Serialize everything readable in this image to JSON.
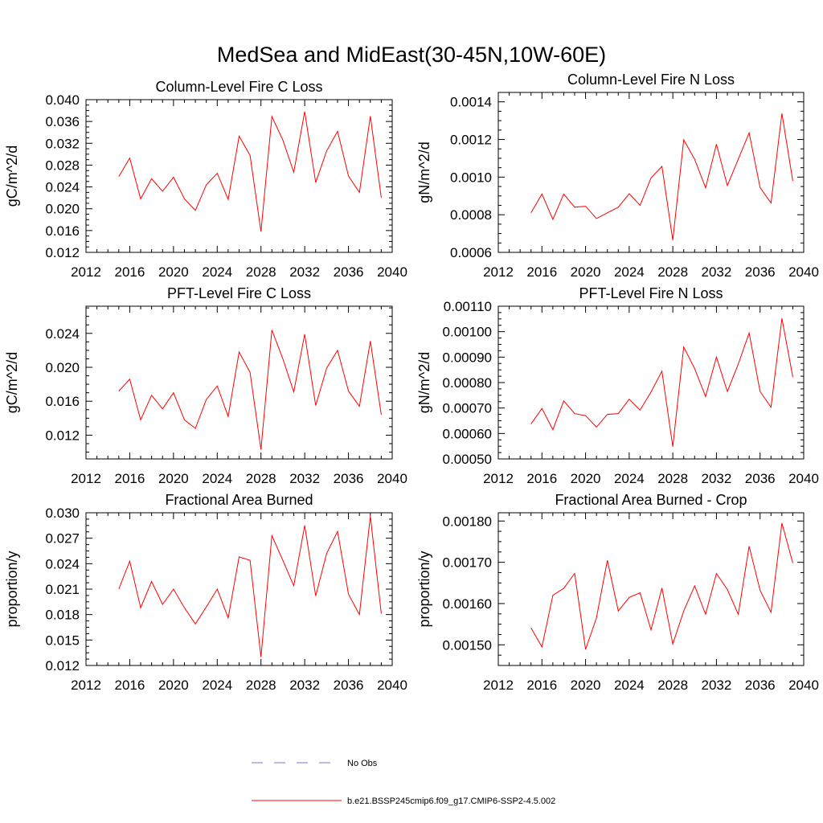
{
  "main_title": "MedSea and MidEast(30-45N,10W-60E)",
  "colors": {
    "model_line": "#ff0000",
    "obs_line": "#7777cc",
    "axis": "#000000"
  },
  "legend": {
    "obs_label": "No Obs",
    "model_label": "b.e21.BSSP245cmip6.f09_g17.CMIP6-SSP2-4.5.002"
  },
  "chart_data": [
    {
      "type": "line",
      "title": "Column-Level Fire C Loss",
      "ylabel": "gC/m^2/d",
      "xlim": [
        2012,
        2040
      ],
      "ylim": [
        0.012,
        0.04
      ],
      "x_ticks": [
        2012,
        2016,
        2020,
        2024,
        2028,
        2032,
        2036,
        2040
      ],
      "x_tick_labels": [
        "2012",
        "2016",
        "2020",
        "2024",
        "2028",
        "2032",
        "2036",
        "2040"
      ],
      "y_ticks": [
        0.012,
        0.016,
        0.02,
        0.024,
        0.028,
        0.032,
        0.036,
        0.04
      ],
      "y_tick_labels": [
        "0.012",
        "0.016",
        "0.020",
        "0.024",
        "0.028",
        "0.032",
        "0.036",
        "0.040"
      ],
      "x": [
        2015,
        2016,
        2017,
        2018,
        2019,
        2020,
        2021,
        2022,
        2023,
        2024,
        2025,
        2026,
        2027,
        2028,
        2029,
        2030,
        2031,
        2032,
        2033,
        2034,
        2035,
        2036,
        2037,
        2038,
        2039
      ],
      "y": [
        0.0259,
        0.0293,
        0.0218,
        0.0255,
        0.0232,
        0.0258,
        0.0218,
        0.0197,
        0.0244,
        0.0265,
        0.0217,
        0.0333,
        0.0298,
        0.0158,
        0.0369,
        0.0326,
        0.0267,
        0.0378,
        0.0248,
        0.0306,
        0.0342,
        0.026,
        0.023,
        0.037,
        0.022
      ]
    },
    {
      "type": "line",
      "title": "Column-Level Fire N Loss",
      "ylabel": "gN/m^2/d",
      "xlim": [
        2012,
        2040
      ],
      "ylim": [
        0.0006,
        0.00145
      ],
      "x_ticks": [
        2012,
        2016,
        2020,
        2024,
        2028,
        2032,
        2036,
        2040
      ],
      "x_tick_labels": [
        "2012",
        "2016",
        "2020",
        "2024",
        "2028",
        "2032",
        "2036",
        "2040"
      ],
      "y_ticks": [
        0.0006,
        0.0008,
        0.001,
        0.0012,
        0.0014
      ],
      "y_tick_labels": [
        "0.0006",
        "0.0008",
        "0.0010",
        "0.0012",
        "0.0014"
      ],
      "x": [
        2015,
        2016,
        2017,
        2018,
        2019,
        2020,
        2021,
        2022,
        2023,
        2024,
        2025,
        2026,
        2027,
        2028,
        2029,
        2030,
        2031,
        2032,
        2033,
        2034,
        2035,
        2036,
        2037,
        2038,
        2039
      ],
      "y": [
        0.00081,
        0.00091,
        0.000775,
        0.00091,
        0.00084,
        0.000845,
        0.00078,
        0.00081,
        0.00084,
        0.000912,
        0.00085,
        0.000995,
        0.001057,
        0.000665,
        0.001198,
        0.001095,
        0.000943,
        0.001175,
        0.000955,
        0.001095,
        0.001235,
        0.000945,
        0.000862,
        0.001338,
        0.00098
      ]
    },
    {
      "type": "line",
      "title": "PFT-Level Fire C Loss",
      "ylabel": "gC/m^2/d",
      "xlim": [
        2012,
        2040
      ],
      "ylim": [
        0.0092,
        0.0272
      ],
      "x_ticks": [
        2012,
        2016,
        2020,
        2024,
        2028,
        2032,
        2036,
        2040
      ],
      "x_tick_labels": [
        "2012",
        "2016",
        "2020",
        "2024",
        "2028",
        "2032",
        "2036",
        "2040"
      ],
      "y_ticks": [
        0.012,
        0.016,
        0.02,
        0.024
      ],
      "y_tick_labels": [
        "0.012",
        "0.016",
        "0.020",
        "0.024"
      ],
      "x": [
        2015,
        2016,
        2017,
        2018,
        2019,
        2020,
        2021,
        2022,
        2023,
        2024,
        2025,
        2026,
        2027,
        2028,
        2029,
        2030,
        2031,
        2032,
        2033,
        2034,
        2035,
        2036,
        2037,
        2038,
        2039
      ],
      "y": [
        0.0172,
        0.0186,
        0.0138,
        0.0167,
        0.0151,
        0.017,
        0.0138,
        0.0128,
        0.0162,
        0.0178,
        0.0142,
        0.0218,
        0.0194,
        0.0103,
        0.0244,
        0.021,
        0.0171,
        0.0239,
        0.0155,
        0.0199,
        0.022,
        0.0172,
        0.0154,
        0.0231,
        0.0144
      ]
    },
    {
      "type": "line",
      "title": "PFT-Level Fire N Loss",
      "ylabel": "gN/m^2/d",
      "xlim": [
        2012,
        2040
      ],
      "ylim": [
        0.0005,
        0.0011
      ],
      "x_ticks": [
        2012,
        2016,
        2020,
        2024,
        2028,
        2032,
        2036,
        2040
      ],
      "x_tick_labels": [
        "2012",
        "2016",
        "2020",
        "2024",
        "2028",
        "2032",
        "2036",
        "2040"
      ],
      "y_ticks": [
        0.0005,
        0.0006,
        0.0007,
        0.0008,
        0.0009,
        0.001,
        0.0011
      ],
      "y_tick_labels": [
        "0.00050",
        "0.00060",
        "0.00070",
        "0.00080",
        "0.00090",
        "0.00100",
        "0.00110"
      ],
      "x": [
        2015,
        2016,
        2017,
        2018,
        2019,
        2020,
        2021,
        2022,
        2023,
        2024,
        2025,
        2026,
        2027,
        2028,
        2029,
        2030,
        2031,
        2032,
        2033,
        2034,
        2035,
        2036,
        2037,
        2038,
        2039
      ],
      "y": [
        0.000637,
        0.000698,
        0.000615,
        0.000728,
        0.000678,
        0.00067,
        0.000625,
        0.000675,
        0.000678,
        0.000735,
        0.000692,
        0.000763,
        0.000845,
        0.000548,
        0.00094,
        0.000855,
        0.000745,
        0.0009,
        0.000765,
        0.000873,
        0.000995,
        0.000765,
        0.000703,
        0.001052,
        0.000822
      ]
    },
    {
      "type": "line",
      "title": "Fractional Area Burned",
      "ylabel": "proportion/y",
      "xlim": [
        2012,
        2040
      ],
      "ylim": [
        0.012,
        0.03
      ],
      "x_ticks": [
        2012,
        2016,
        2020,
        2024,
        2028,
        2032,
        2036,
        2040
      ],
      "x_tick_labels": [
        "2012",
        "2016",
        "2020",
        "2024",
        "2028",
        "2032",
        "2036",
        "2040"
      ],
      "y_ticks": [
        0.012,
        0.015,
        0.018,
        0.021,
        0.024,
        0.027,
        0.03
      ],
      "y_tick_labels": [
        "0.012",
        "0.015",
        "0.018",
        "0.021",
        "0.024",
        "0.027",
        "0.030"
      ],
      "x": [
        2015,
        2016,
        2017,
        2018,
        2019,
        2020,
        2021,
        2022,
        2023,
        2024,
        2025,
        2026,
        2027,
        2028,
        2029,
        2030,
        2031,
        2032,
        2033,
        2034,
        2035,
        2036,
        2037,
        2038,
        2039
      ],
      "y": [
        0.021,
        0.0243,
        0.0188,
        0.0219,
        0.0192,
        0.021,
        0.0188,
        0.0169,
        0.0189,
        0.021,
        0.0176,
        0.0248,
        0.0244,
        0.013,
        0.0273,
        0.0244,
        0.0214,
        0.0285,
        0.0202,
        0.0252,
        0.0278,
        0.0204,
        0.018,
        0.0296,
        0.0181
      ]
    },
    {
      "type": "line",
      "title": "Fractional Area Burned - Crop",
      "ylabel": "proportion/y",
      "xlim": [
        2012,
        2040
      ],
      "ylim": [
        0.00145,
        0.00182
      ],
      "x_ticks": [
        2012,
        2016,
        2020,
        2024,
        2028,
        2032,
        2036,
        2040
      ],
      "x_tick_labels": [
        "2012",
        "2016",
        "2020",
        "2024",
        "2028",
        "2032",
        "2036",
        "2040"
      ],
      "y_ticks": [
        0.0015,
        0.0016,
        0.0017,
        0.0018
      ],
      "y_tick_labels": [
        "0.00150",
        "0.00160",
        "0.00170",
        "0.00180"
      ],
      "x": [
        2015,
        2016,
        2017,
        2018,
        2019,
        2020,
        2021,
        2022,
        2023,
        2024,
        2025,
        2026,
        2027,
        2028,
        2029,
        2030,
        2031,
        2032,
        2033,
        2034,
        2035,
        2036,
        2037,
        2038,
        2039
      ],
      "y": [
        0.001541,
        0.001495,
        0.00162,
        0.001637,
        0.001673,
        0.001489,
        0.001565,
        0.001705,
        0.001582,
        0.001615,
        0.001626,
        0.001536,
        0.001638,
        0.001502,
        0.001582,
        0.001643,
        0.001574,
        0.001673,
        0.001634,
        0.001574,
        0.001739,
        0.001632,
        0.001579,
        0.001795,
        0.001698
      ]
    }
  ]
}
